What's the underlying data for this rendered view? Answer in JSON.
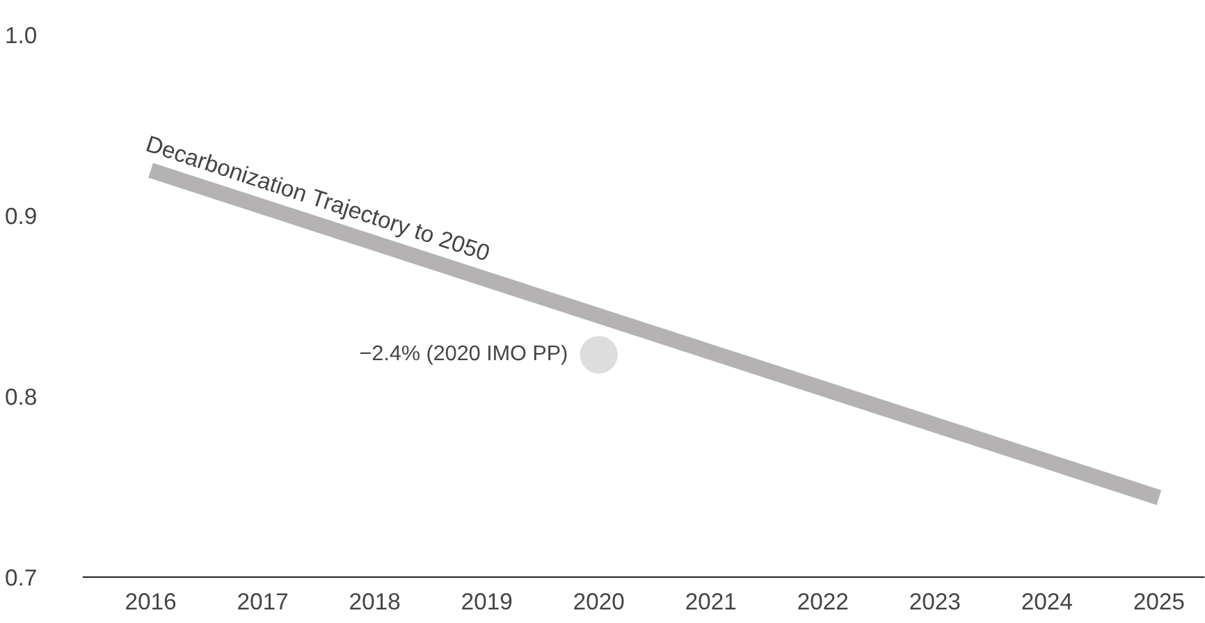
{
  "chart_data": {
    "type": "line",
    "series": [
      {
        "color": "#b4b2b2",
        "x": [
          2016,
          2025
        ],
        "values": [
          0.925,
          0.744
        ]
      },
      {
        "type": "scatter",
        "color": "#dedddd",
        "x": [
          2020
        ],
        "values": [
          0.823
        ]
      }
    ],
    "annotations": [
      {
        "text": "Decarbonization Trajectory to 2050",
        "x": 2016,
        "y": 0.925
      },
      {
        "text": "−2.4% (2020 IMO PP)",
        "x": 2020,
        "y": 0.823
      }
    ],
    "xlim": [
      2015.4,
      2025.4
    ],
    "ylim": [
      0.7,
      1.0
    ],
    "xticks": [
      2016,
      2017,
      2018,
      2019,
      2020,
      2021,
      2022,
      2023,
      2024,
      2025
    ],
    "yticks": [
      {
        "value": 0.7,
        "label": "0.7"
      },
      {
        "value": 0.8,
        "label": "0.8"
      },
      {
        "value": 0.9,
        "label": "0.9"
      },
      {
        "value": 1.0,
        "label": "1.0"
      }
    ],
    "grid": false,
    "legend": false
  }
}
